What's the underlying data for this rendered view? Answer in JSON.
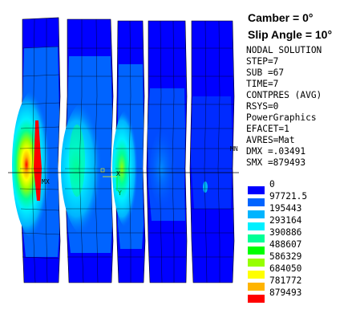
{
  "header": {
    "camber": "Camber = 0°",
    "slip_angle": "Slip Angle = 10°"
  },
  "info_lines": [
    "NODAL SOLUTION",
    "STEP=7",
    "SUB =67",
    "TIME=7",
    "CONTPRES (AVG)",
    "RSYS=0",
    "PowerGraphics",
    "EFACET=1",
    "AVRES=Mat",
    "DMX =.03491",
    "SMX =879493"
  ],
  "legend": {
    "values": [
      "0",
      "97721.5",
      "195443",
      "293164",
      "390886",
      "488607",
      "586329",
      "684050",
      "781772",
      "879493"
    ],
    "colors": [
      "#0000ff",
      "#0064ff",
      "#00b4ff",
      "#00f0ff",
      "#00ff96",
      "#00ff00",
      "#96ff00",
      "#ffff00",
      "#ffb400",
      "#ff0000"
    ]
  },
  "plot_labels": {
    "mx": "MX",
    "mn": "MN",
    "axis_x": "X",
    "axis_y": "Y"
  }
}
